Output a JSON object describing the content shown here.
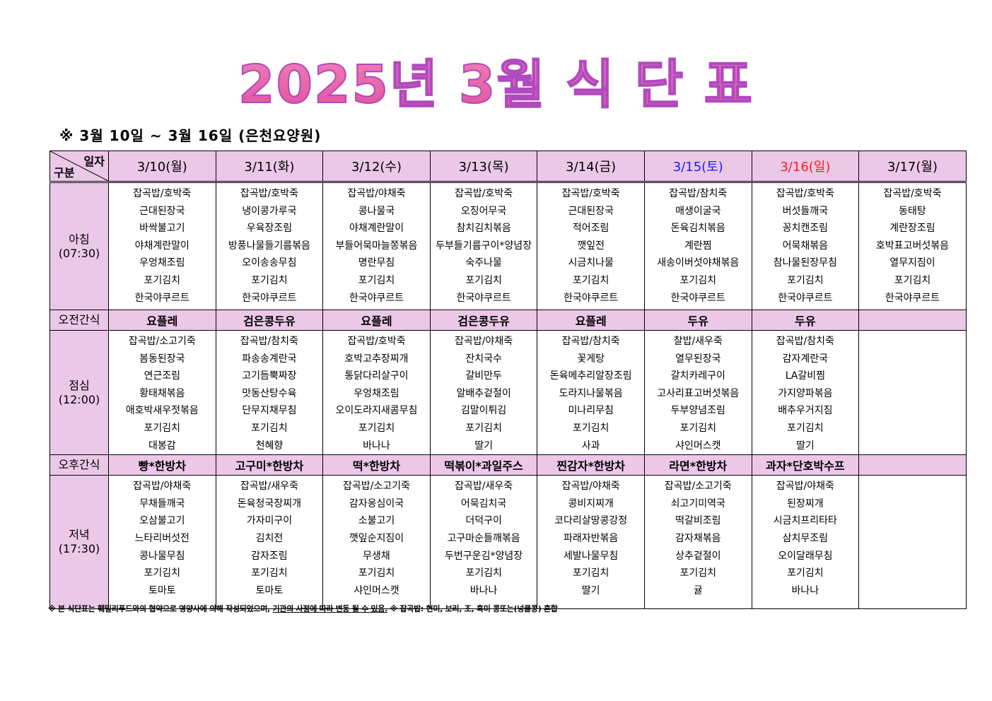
{
  "title": "2025년 3월 식 단 표",
  "period": "※  3월  10일  ~  3월  16일  (은천요양원)",
  "corner": {
    "top": "일자",
    "bottom": "구분"
  },
  "colors": {
    "header_bg": "#ecc8e8",
    "saturday": "#1a1aff",
    "sunday": "#ff1a1a",
    "title": "#e968ad"
  },
  "dates": [
    {
      "label": "3/10(월)",
      "color": "#000000"
    },
    {
      "label": "3/11(화)",
      "color": "#000000"
    },
    {
      "label": "3/12(수)",
      "color": "#000000"
    },
    {
      "label": "3/13(목)",
      "color": "#000000"
    },
    {
      "label": "3/14(금)",
      "color": "#000000"
    },
    {
      "label": "3/15(토)",
      "color": "#1a1aff"
    },
    {
      "label": "3/16(일)",
      "color": "#ff1a1a"
    },
    {
      "label": "3/17(월)",
      "color": "#000000"
    }
  ],
  "rows": [
    {
      "type": "meal",
      "label": "아침",
      "time": "(07:30)",
      "days": [
        [
          "잡곡밥/호박죽",
          "근대된장국",
          "바싹불고기",
          "야채계란말이",
          "우엉채조림",
          "포기김치",
          "한국야쿠르트"
        ],
        [
          "잡곡밥/호박죽",
          "냉이콩가루국",
          "우육장조림",
          "방풍나물들기름볶음",
          "오이송송무침",
          "포기김치",
          "한국야쿠르트"
        ],
        [
          "잡곡밥/야채죽",
          "콩나물국",
          "야채계란말이",
          "부들어묵마늘쫑볶음",
          "명란무침",
          "포기김치",
          "한국야쿠르트"
        ],
        [
          "잡곡밥/호박죽",
          "오징어무국",
          "참치김치볶음",
          "두부들기름구이*양념장",
          "숙주나물",
          "포기김치",
          "한국야쿠르트"
        ],
        [
          "잡곡밥/호박죽",
          "근대된장국",
          "적어조림",
          "깻잎전",
          "시금치나물",
          "포기김치",
          "한국야쿠르트"
        ],
        [
          "잡곡밥/참치죽",
          "매생이굴국",
          "돈육김치볶음",
          "계란찜",
          "새송이버섯야채볶음",
          "포기김치",
          "한국야쿠르트"
        ],
        [
          "잡곡밥/호박죽",
          "버섯들깨국",
          "꽁치캔조림",
          "어묵채볶음",
          "참나물된장무침",
          "포기김치",
          "한국야쿠르트"
        ],
        [
          "잡곡밥/호박죽",
          "동태탕",
          "계란장조림",
          "호박표고버섯볶음",
          "열무지짐이",
          "포기김치",
          "한국야쿠르트"
        ]
      ]
    },
    {
      "type": "snack",
      "label": "오전간식",
      "days": [
        "요플레",
        "검은콩두유",
        "요플레",
        "검은콩두유",
        "요플레",
        "두유",
        "두유",
        ""
      ]
    },
    {
      "type": "meal",
      "label": "점심",
      "time": "(12:00)",
      "days": [
        [
          "잡곡밥/소고기죽",
          "봄동된장국",
          "연근조림",
          "황태채볶음",
          "애호박새우젓볶음",
          "포기김치",
          "대봉감"
        ],
        [
          "잡곡밥/참치죽",
          "파송송계란국",
          "고기듬뿍짜장",
          "맛동산탕수육",
          "단무지채무침",
          "포기김치",
          "천혜향"
        ],
        [
          "잡곡밥/호박죽",
          "호박고추장찌개",
          "통닭다리살구이",
          "우엉채조림",
          "오이도라지새콤무침",
          "포기김치",
          "바나나"
        ],
        [
          "잡곡밥/야채죽",
          "잔치국수",
          "갈비만두",
          "알배추겉절이",
          "김말이튀김",
          "포기김치",
          "딸기"
        ],
        [
          "잡곡밥/참치죽",
          "꽃게탕",
          "돈육메추리알장조림",
          "도라지나물볶음",
          "미나리무침",
          "포기김치",
          "사과"
        ],
        [
          "찰밥/새우죽",
          "열무된장국",
          "갈치카레구이",
          "고사리표고버섯볶음",
          "두부양념조림",
          "포기김치",
          "샤인머스캣"
        ],
        [
          "잡곡밥/참치죽",
          "감자계란국",
          "LA갈비찜",
          "가지양파볶음",
          "배추우거지짐",
          "포기김치",
          "딸기"
        ],
        []
      ]
    },
    {
      "type": "snack",
      "label": "오후간식",
      "days": [
        "빵*한방차",
        "고구미*한방차",
        "떡*한방차",
        "떡볶이*과일주스",
        "찐감자*한방차",
        "라면*한방차",
        "과자*단호박수프",
        ""
      ]
    },
    {
      "type": "meal",
      "label": "저녁",
      "time": "(17:30)",
      "days": [
        [
          "잡곡밥/야채죽",
          "무채들깨국",
          "오삼불고기",
          "느타리버섯전",
          "콩나물무침",
          "포기김치",
          "토마토"
        ],
        [
          "잡곡밥/새우죽",
          "돈육청국장찌개",
          "가자미구이",
          "김치전",
          "감자조림",
          "포기김치",
          "토마토"
        ],
        [
          "잡곡밥/소고기죽",
          "감자옹심이국",
          "소불고기",
          "깻잎순지짐이",
          "무생채",
          "포기김치",
          "샤인머스캣"
        ],
        [
          "잡곡밥/새우죽",
          "어묵김치국",
          "더덕구이",
          "고구마순들깨볶음",
          "두번구운김*양념장",
          "포기김치",
          "바나나"
        ],
        [
          "잡곡밥/야채죽",
          "콩비지찌개",
          "코다리살땅콩강정",
          "파래자반볶음",
          "세발나물무침",
          "포기김치",
          "딸기"
        ],
        [
          "잡곡밥/소고기죽",
          "쇠고기미역국",
          "떡갈비조림",
          "감자채볶음",
          "상추겉절이",
          "포기김치",
          "귤"
        ],
        [
          "잡곡밥/야채죽",
          "된장찌개",
          "시금치프리타타",
          "삼치무조림",
          "오이달래무침",
          "포기김치",
          "바나나"
        ],
        []
      ]
    }
  ],
  "footer": {
    "part1": "※ 본 식단표는 훼밀리푸드와의 협약으로 영양사에 의해 작성되었으며, ",
    "part2": "기관의 사정에 따라 변동 될 수 있음.",
    "part3": " ※ 잡곡밥: 현미, 보리, 조, 흑미 콩또는(넝쿨콩) 혼합"
  }
}
